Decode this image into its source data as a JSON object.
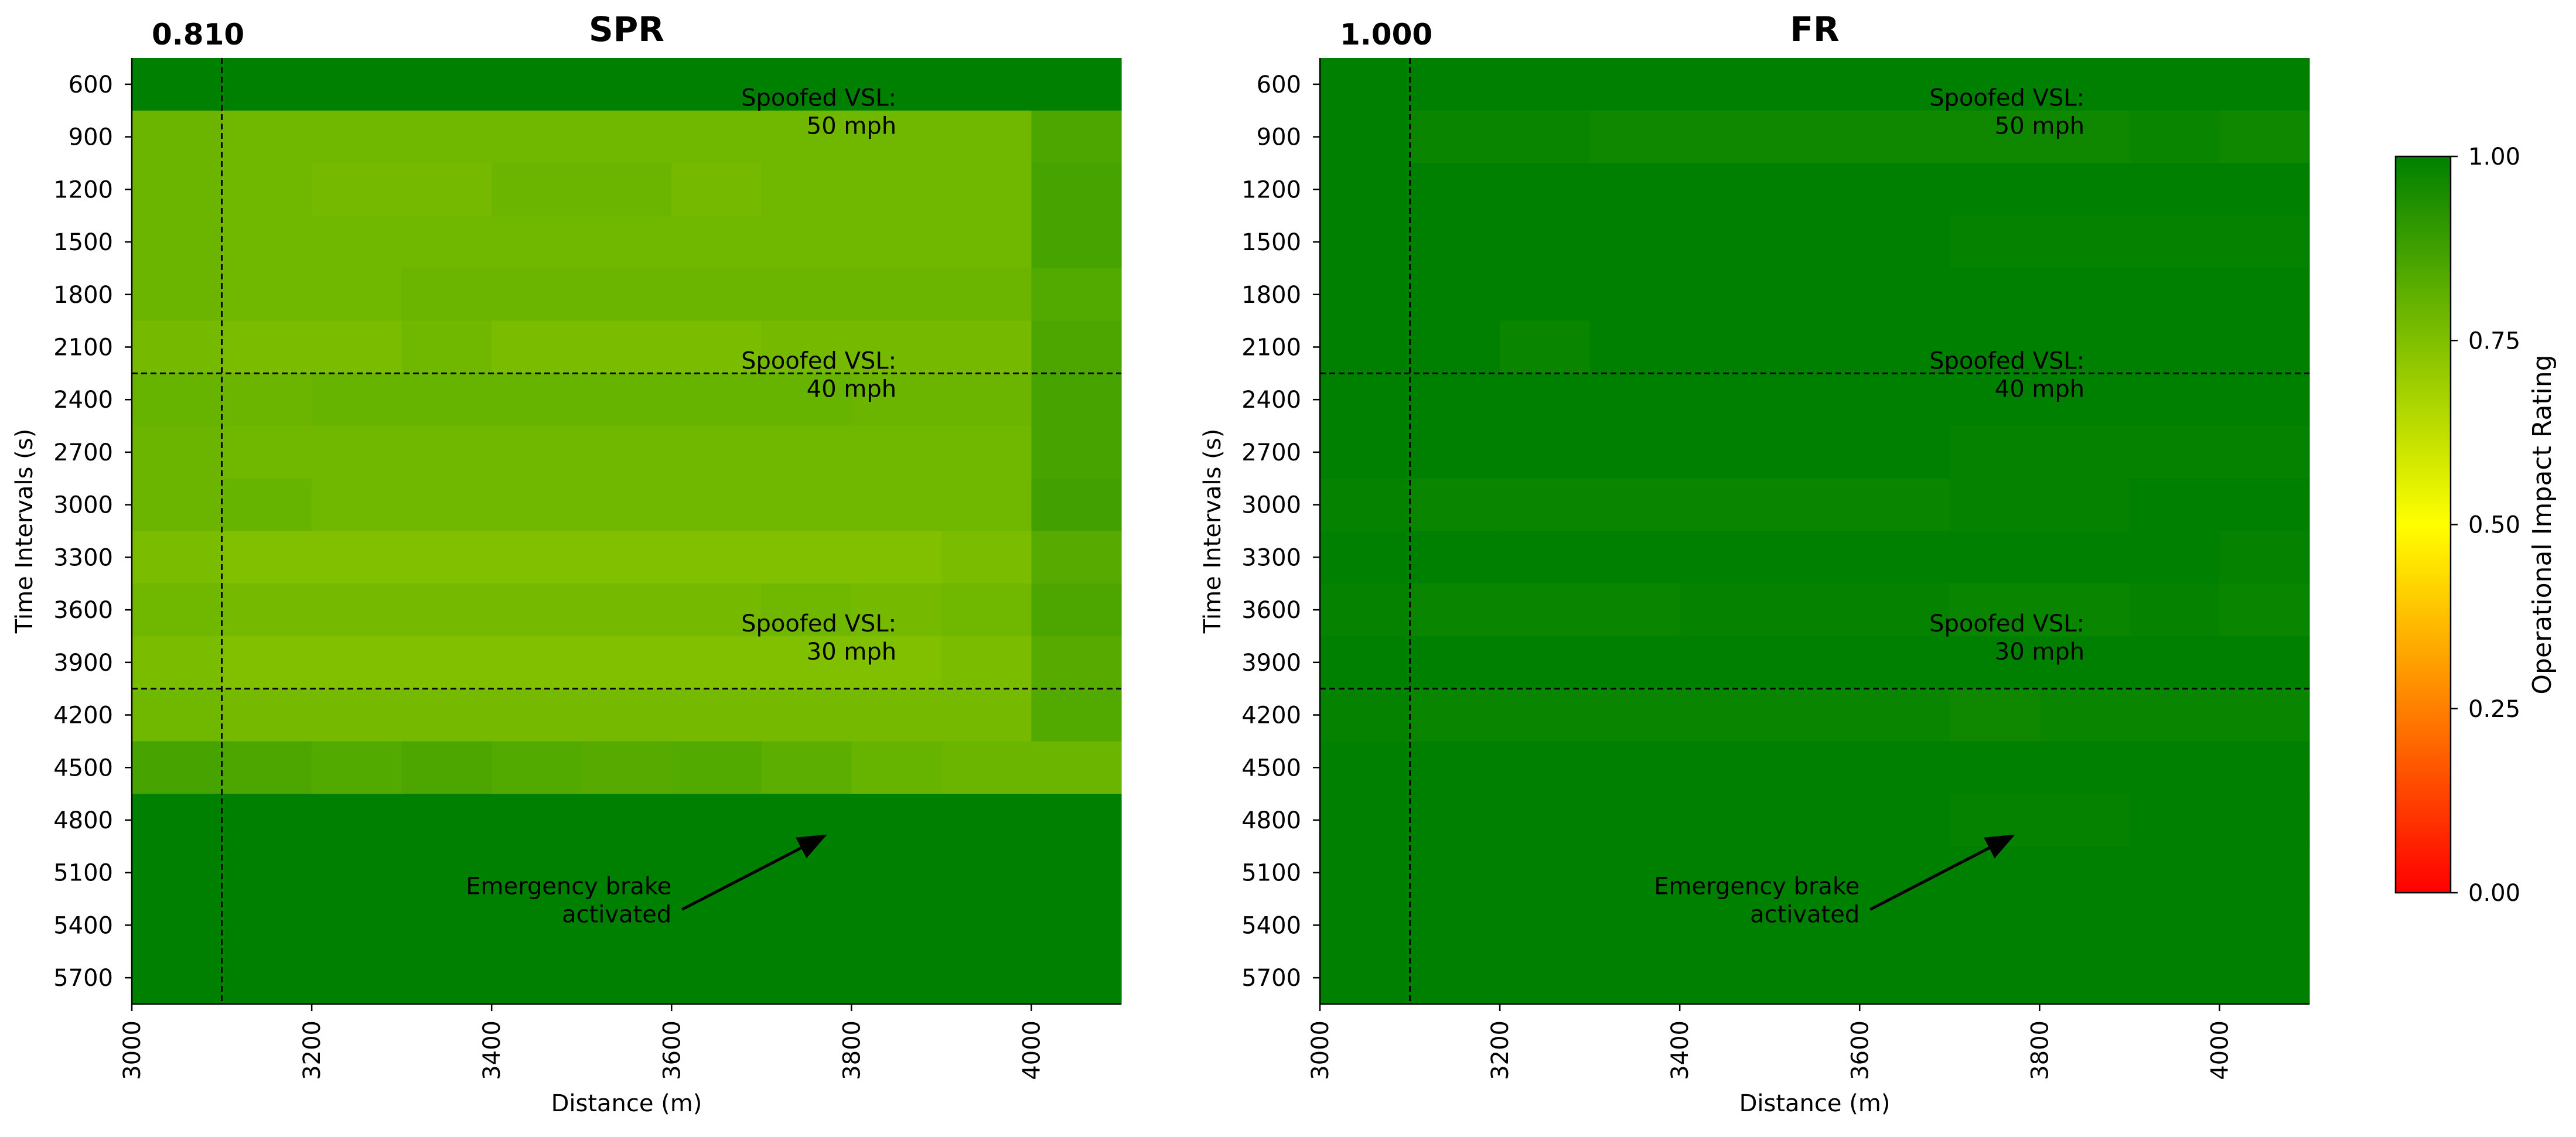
{
  "chart_data": [
    {
      "type": "heatmap",
      "title": "SPR",
      "corner_value": "0.810",
      "xlabel": "Distance (m)",
      "ylabel": "Time Intervals (s)",
      "xlim": [
        3000,
        4100
      ],
      "x_cell_width": 100,
      "x_ticks": [
        3000,
        3200,
        3400,
        3600,
        3800,
        4000
      ],
      "y_ticks": [
        600,
        900,
        1200,
        1500,
        1800,
        2100,
        2400,
        2700,
        3000,
        3300,
        3600,
        3900,
        4200,
        4500,
        4800,
        5100,
        5400,
        5700
      ],
      "dashed_lines": {
        "vertical_x": 3100,
        "horizontal_between": [
          [
            2100,
            2400
          ],
          [
            3900,
            4200
          ]
        ]
      },
      "values": [
        [
          1.0,
          1.0,
          1.0,
          1.0,
          1.0,
          1.0,
          1.0,
          1.0,
          1.0,
          1.0,
          1.0
        ],
        [
          0.79,
          0.78,
          0.78,
          0.78,
          0.78,
          0.78,
          0.78,
          0.78,
          0.78,
          0.78,
          0.85
        ],
        [
          0.79,
          0.78,
          0.77,
          0.77,
          0.79,
          0.79,
          0.77,
          0.78,
          0.78,
          0.78,
          0.86
        ],
        [
          0.79,
          0.78,
          0.78,
          0.78,
          0.78,
          0.78,
          0.78,
          0.78,
          0.78,
          0.78,
          0.86
        ],
        [
          0.79,
          0.78,
          0.78,
          0.79,
          0.79,
          0.79,
          0.79,
          0.79,
          0.79,
          0.79,
          0.84
        ],
        [
          0.77,
          0.76,
          0.76,
          0.78,
          0.76,
          0.76,
          0.76,
          0.77,
          0.77,
          0.77,
          0.85
        ],
        [
          0.8,
          0.79,
          0.8,
          0.8,
          0.8,
          0.8,
          0.8,
          0.8,
          0.79,
          0.79,
          0.86
        ],
        [
          0.79,
          0.78,
          0.78,
          0.78,
          0.78,
          0.78,
          0.78,
          0.78,
          0.78,
          0.78,
          0.86
        ],
        [
          0.79,
          0.8,
          0.78,
          0.78,
          0.78,
          0.78,
          0.78,
          0.78,
          0.78,
          0.78,
          0.87
        ],
        [
          0.76,
          0.75,
          0.75,
          0.75,
          0.75,
          0.75,
          0.75,
          0.75,
          0.75,
          0.76,
          0.83
        ],
        [
          0.78,
          0.77,
          0.77,
          0.77,
          0.77,
          0.77,
          0.77,
          0.78,
          0.77,
          0.78,
          0.85
        ],
        [
          0.76,
          0.75,
          0.75,
          0.75,
          0.75,
          0.75,
          0.75,
          0.75,
          0.75,
          0.76,
          0.83
        ],
        [
          0.78,
          0.77,
          0.77,
          0.77,
          0.77,
          0.77,
          0.77,
          0.77,
          0.77,
          0.77,
          0.84
        ],
        [
          0.86,
          0.85,
          0.84,
          0.85,
          0.84,
          0.83,
          0.84,
          0.82,
          0.8,
          0.79,
          0.79
        ],
        [
          1.0,
          1.0,
          1.0,
          1.0,
          1.0,
          1.0,
          1.0,
          1.0,
          1.0,
          1.0,
          1.0
        ],
        [
          1.0,
          1.0,
          1.0,
          1.0,
          1.0,
          1.0,
          1.0,
          1.0,
          1.0,
          1.0,
          1.0
        ],
        [
          1.0,
          1.0,
          1.0,
          1.0,
          1.0,
          1.0,
          1.0,
          1.0,
          1.0,
          1.0,
          1.0
        ],
        [
          1.0,
          1.0,
          1.0,
          1.0,
          1.0,
          1.0,
          1.0,
          1.0,
          1.0,
          1.0,
          1.0
        ]
      ],
      "annotations": [
        {
          "lines": [
            "Spoofed VSL:",
            "50 mph"
          ],
          "x": 3850,
          "y": 750
        },
        {
          "lines": [
            "Spoofed VSL:",
            "40 mph"
          ],
          "x": 3850,
          "y": 2250
        },
        {
          "lines": [
            "Spoofed VSL:",
            "30 mph"
          ],
          "x": 3850,
          "y": 3750
        },
        {
          "lines": [
            "Emergency brake",
            "activated"
          ],
          "x": 3600,
          "y": 5250,
          "arrow_to": [
            3770,
            4890
          ]
        }
      ]
    },
    {
      "type": "heatmap",
      "title": "FR",
      "corner_value": "1.000",
      "xlabel": "Distance (m)",
      "ylabel": "Time Intervals (s)",
      "xlim": [
        3000,
        4100
      ],
      "x_cell_width": 100,
      "x_ticks": [
        3000,
        3200,
        3400,
        3600,
        3800,
        4000
      ],
      "y_ticks": [
        600,
        900,
        1200,
        1500,
        1800,
        2100,
        2400,
        2700,
        3000,
        3300,
        3600,
        3900,
        4200,
        4500,
        4800,
        5100,
        5400,
        5700
      ],
      "dashed_lines": {
        "vertical_x": 3100,
        "horizontal_between": [
          [
            2100,
            2400
          ],
          [
            3900,
            4200
          ]
        ]
      },
      "values": [
        [
          1.0,
          1.0,
          1.0,
          1.0,
          1.0,
          1.0,
          1.0,
          1.0,
          1.0,
          1.0,
          1.0
        ],
        [
          1.0,
          0.98,
          0.98,
          0.97,
          0.97,
          0.97,
          0.97,
          0.97,
          0.97,
          0.98,
          0.97
        ],
        [
          1.0,
          1.0,
          1.0,
          1.0,
          1.0,
          1.0,
          1.0,
          1.0,
          1.0,
          1.0,
          1.0
        ],
        [
          1.0,
          1.0,
          1.0,
          1.0,
          1.0,
          1.0,
          1.0,
          0.99,
          0.99,
          0.99,
          0.99
        ],
        [
          1.0,
          1.0,
          1.0,
          1.0,
          1.0,
          1.0,
          1.0,
          1.0,
          1.0,
          1.0,
          1.0
        ],
        [
          1.0,
          1.0,
          0.98,
          1.0,
          1.0,
          1.0,
          1.0,
          1.0,
          1.0,
          1.0,
          1.0
        ],
        [
          1.0,
          1.0,
          1.0,
          1.0,
          1.0,
          1.0,
          1.0,
          1.0,
          1.0,
          1.0,
          1.0
        ],
        [
          1.0,
          1.0,
          1.0,
          1.0,
          1.0,
          1.0,
          1.0,
          0.99,
          0.99,
          0.99,
          0.99
        ],
        [
          0.99,
          0.98,
          0.98,
          0.98,
          0.98,
          0.98,
          0.98,
          0.99,
          0.99,
          1.0,
          1.0
        ],
        [
          1.0,
          1.0,
          1.0,
          1.0,
          1.0,
          1.0,
          1.0,
          1.0,
          1.0,
          1.0,
          0.99
        ],
        [
          0.99,
          0.98,
          0.98,
          0.98,
          0.99,
          0.99,
          0.99,
          0.98,
          0.98,
          0.99,
          0.98
        ],
        [
          1.0,
          1.0,
          1.0,
          1.0,
          1.0,
          1.0,
          1.0,
          1.0,
          1.0,
          1.0,
          1.0
        ],
        [
          0.99,
          0.98,
          0.98,
          0.98,
          0.98,
          0.98,
          0.98,
          0.97,
          0.98,
          0.98,
          0.98
        ],
        [
          1.0,
          1.0,
          1.0,
          1.0,
          1.0,
          1.0,
          1.0,
          1.0,
          1.0,
          1.0,
          1.0
        ],
        [
          1.0,
          1.0,
          1.0,
          1.0,
          1.0,
          1.0,
          1.0,
          0.99,
          0.99,
          1.0,
          1.0
        ],
        [
          1.0,
          1.0,
          1.0,
          1.0,
          1.0,
          1.0,
          1.0,
          1.0,
          1.0,
          1.0,
          1.0
        ],
        [
          1.0,
          1.0,
          1.0,
          1.0,
          1.0,
          1.0,
          1.0,
          1.0,
          1.0,
          1.0,
          1.0
        ],
        [
          1.0,
          1.0,
          1.0,
          1.0,
          1.0,
          1.0,
          1.0,
          1.0,
          1.0,
          1.0,
          1.0
        ]
      ],
      "annotations": [
        {
          "lines": [
            "Spoofed VSL:",
            "50 mph"
          ],
          "x": 3850,
          "y": 750
        },
        {
          "lines": [
            "Spoofed VSL:",
            "40 mph"
          ],
          "x": 3850,
          "y": 2250
        },
        {
          "lines": [
            "Spoofed VSL:",
            "30 mph"
          ],
          "x": 3850,
          "y": 3750
        },
        {
          "lines": [
            "Emergency brake",
            "activated"
          ],
          "x": 3600,
          "y": 5250,
          "arrow_to": [
            3770,
            4890
          ]
        }
      ]
    }
  ],
  "colorbar": {
    "label": "Operational Impact Rating",
    "range": [
      0.0,
      1.0
    ],
    "ticks": [
      "0.00",
      "0.25",
      "0.50",
      "0.75",
      "1.00"
    ],
    "colormap": [
      {
        "stop": 0.0,
        "color": "#ff0000"
      },
      {
        "stop": 0.5,
        "color": "#ffff00"
      },
      {
        "stop": 1.0,
        "color": "#008000"
      }
    ]
  },
  "colors": {
    "axis": "#000000",
    "text": "#000000",
    "background": "#ffffff"
  }
}
